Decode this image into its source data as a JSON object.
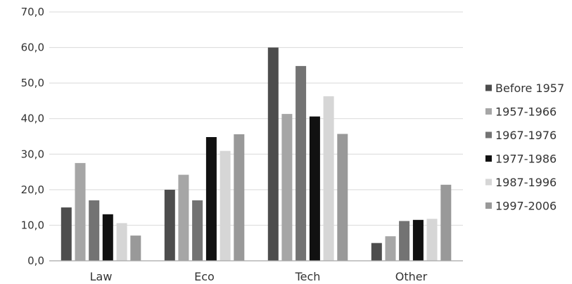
{
  "chart_data": {
    "type": "bar",
    "title": "",
    "xlabel": "",
    "ylabel": "",
    "categories": [
      "Law",
      "Eco",
      "Tech",
      "Other"
    ],
    "ylim": [
      0,
      70
    ],
    "yticks": [
      "0,0",
      "10,0",
      "20,0",
      "30,0",
      "40,0",
      "50,0",
      "60,0",
      "70,0"
    ],
    "grid": true,
    "legend_position": "right",
    "series": [
      {
        "name": "Before 1957",
        "color": "#4d4d4d",
        "values": [
          15.0,
          20.0,
          60.0,
          5.0
        ]
      },
      {
        "name": "1957-1966",
        "color": "#a6a6a6",
        "values": [
          27.5,
          24.2,
          41.3,
          6.9
        ]
      },
      {
        "name": "1967-1976",
        "color": "#737373",
        "values": [
          17.0,
          17.0,
          54.8,
          11.2
        ]
      },
      {
        "name": "1977-1986",
        "color": "#111111",
        "values": [
          13.1,
          34.8,
          40.6,
          11.5
        ]
      },
      {
        "name": "1987-1996",
        "color": "#d6d6d6",
        "values": [
          10.6,
          30.9,
          46.3,
          11.8
        ]
      },
      {
        "name": "1997-2006",
        "color": "#999999",
        "values": [
          7.1,
          35.6,
          35.7,
          21.4
        ]
      }
    ]
  }
}
